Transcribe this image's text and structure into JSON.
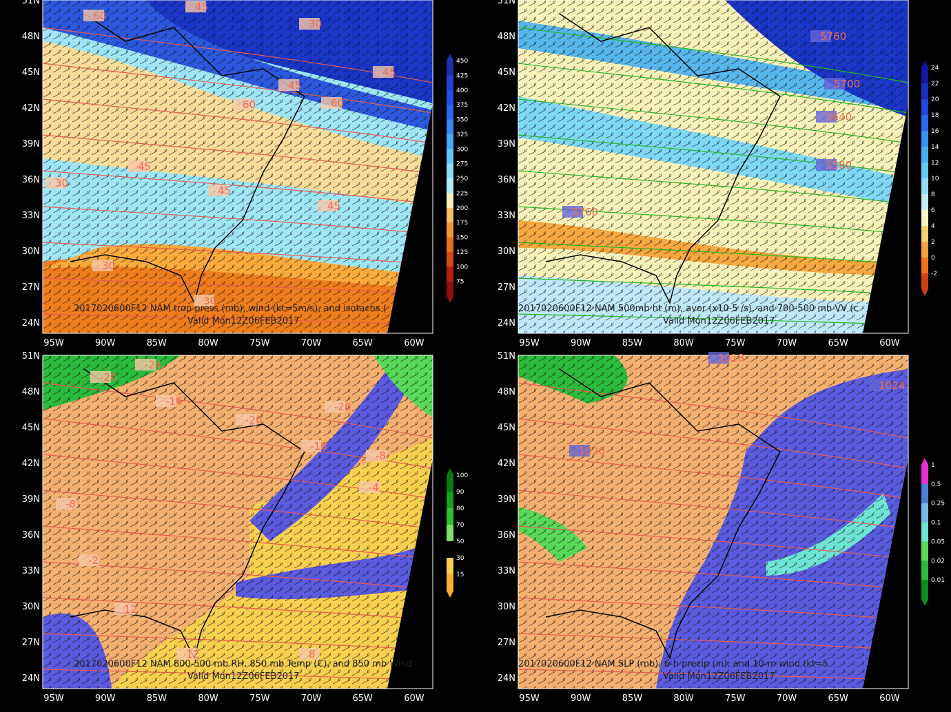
{
  "panels": [
    {
      "title": "2017020600F12 NAM trop press (mb), wind (kt=5m/s), and isotachs (",
      "valid": "Valid Mon12Z06FEB2017",
      "lat_labels": [
        "51N",
        "48N",
        "45N",
        "42N",
        "39N",
        "36N",
        "33N",
        "30N",
        "27N",
        "24N"
      ],
      "lon_labels": [
        "95W",
        "90W",
        "85W",
        "80W",
        "75W",
        "70W",
        "65W",
        "60W"
      ],
      "colorbar": [
        "450",
        "425",
        "400",
        "375",
        "350",
        "325",
        "300",
        "275",
        "250",
        "225",
        "200",
        "175",
        "150",
        "125",
        "100",
        "75"
      ],
      "contour_labels": [
        "45",
        "30",
        "60",
        "45",
        "60",
        "45",
        "60",
        "45",
        "30",
        "45",
        "45",
        "30",
        "30"
      ]
    },
    {
      "title": "2017020600F12 NAM 500mb ht (m), avor (x10-5 /s), and 700-500 mb VV (c",
      "valid": "Valid Mon12Z06FEB2017",
      "lat_labels": [
        "51N",
        "48N",
        "45N",
        "42N",
        "39N",
        "36N",
        "33N",
        "30N",
        "27N",
        "24N"
      ],
      "lon_labels": [
        "95W",
        "90W",
        "85W",
        "80W",
        "75W",
        "70W",
        "65W",
        "60W"
      ],
      "colorbar": [
        "24",
        "22",
        "20",
        "18",
        "16",
        "14",
        "12",
        "10",
        "8",
        "6",
        "4",
        "2",
        "0",
        "-2"
      ],
      "contour_labels": [
        "5760",
        "5580",
        "5700",
        "5640",
        "5760"
      ]
    },
    {
      "title": "2017020600F12 NAM 800-500 mb RH, 850 mb Temp (C), and 850 mb Wind",
      "valid": "Valid Mon12Z06FEB2017",
      "lat_labels": [
        "51N",
        "48N",
        "45N",
        "42N",
        "39N",
        "36N",
        "33N",
        "30N",
        "27N",
        "24N"
      ],
      "lon_labels": [
        "95W",
        "90W",
        "85W",
        "80W",
        "75W",
        "70W",
        "65W",
        "60W"
      ],
      "colorbar": [
        "100",
        "90",
        "80",
        "70",
        "50",
        "30",
        "15"
      ],
      "contour_labels": [
        "-24",
        "-20",
        "-16",
        "-20",
        "-20",
        "-16",
        "-8",
        "-4",
        "-8",
        "-2",
        "12",
        "12",
        "8"
      ]
    },
    {
      "title": "2017020600F12 NAM SLP (mb), 6-h precip (in), and 10-m wind (kt=5",
      "valid": "Valid Mon12Z06FEB2017",
      "lat_labels": [
        "51N",
        "48N",
        "45N",
        "42N",
        "39N",
        "36N",
        "33N",
        "30N",
        "27N",
        "24N"
      ],
      "lon_labels": [
        "95W",
        "90W",
        "85W",
        "80W",
        "75W",
        "70W",
        "65W",
        "60W"
      ],
      "colorbar": [
        "1",
        "0.5",
        "0.25",
        "0.1",
        "0.05",
        "0.02",
        "0.01"
      ],
      "contour_labels": [
        "1018",
        "1024",
        "1020"
      ]
    }
  ]
}
